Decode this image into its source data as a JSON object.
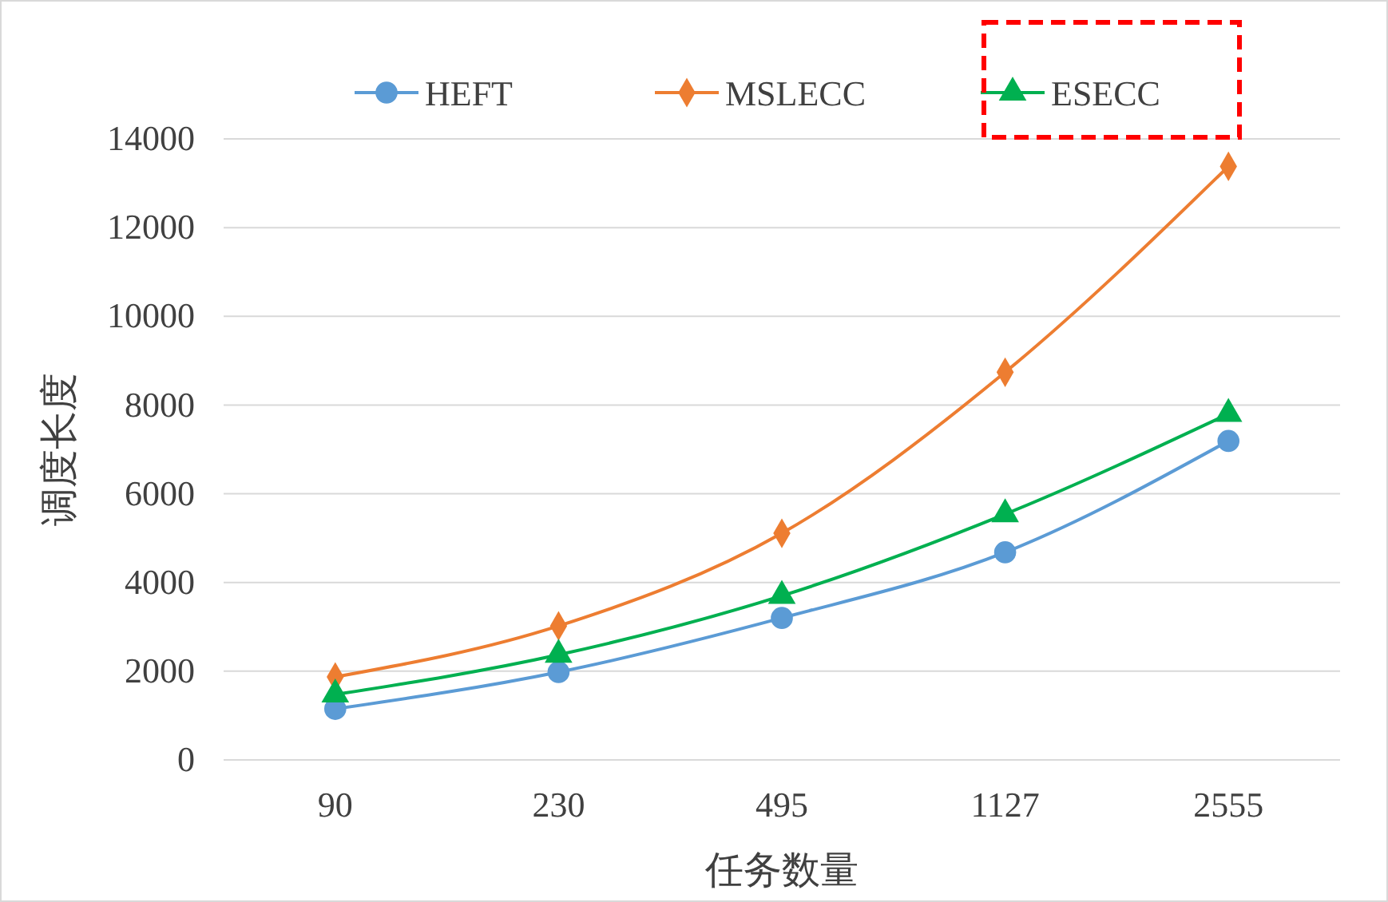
{
  "chart_data": {
    "type": "line",
    "xlabel": "任务数量",
    "ylabel": "调度长度",
    "categories": [
      "90",
      "230",
      "495",
      "1127",
      "2555"
    ],
    "series": [
      {
        "name": "HEFT",
        "color": "#5b9bd5",
        "marker": "circle",
        "values": [
          1150,
          1980,
          3200,
          4680,
          7190
        ]
      },
      {
        "name": "MSLECC",
        "color": "#ed7d31",
        "marker": "diamond",
        "values": [
          1870,
          3020,
          5110,
          8740,
          13380
        ]
      },
      {
        "name": "ESECC",
        "color": "#00b050",
        "marker": "triangle",
        "values": [
          1475,
          2370,
          3700,
          5540,
          7800
        ]
      }
    ],
    "ylim": [
      0,
      14000
    ],
    "yticks": [
      0,
      2000,
      4000,
      6000,
      8000,
      10000,
      12000,
      14000
    ],
    "grid": "y",
    "legend": "top"
  }
}
